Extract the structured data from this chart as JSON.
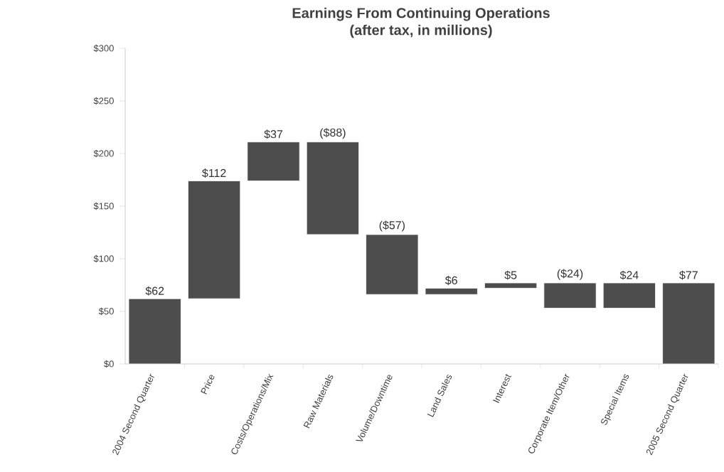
{
  "chart_data": {
    "type": "bar",
    "title": "Earnings From Continuing Operations",
    "subtitle": "(after tax, in millions)",
    "categories": [
      "2004 Second Quarter",
      "Price",
      "Costs/Operations/Mix",
      "Raw Materials",
      "Volume/Downtime",
      "Land Sales",
      "Interest",
      "Corporate Item/Other",
      "Special Items",
      "2005 Second Quarter"
    ],
    "values": [
      62,
      112,
      37,
      -88,
      -57,
      6,
      5,
      -24,
      24,
      77
    ],
    "base": [
      0,
      62,
      174,
      211,
      123,
      66,
      72,
      77,
      53,
      0
    ],
    "value_labels": [
      "$62",
      "$112",
      "$37",
      "($88)",
      "($57)",
      "$6",
      "$5",
      "($24)",
      "$24",
      "$77"
    ],
    "color": "#4d4d4d",
    "ylim": [
      0,
      300
    ],
    "yticks": [
      {
        "value": 0,
        "label": "$0"
      },
      {
        "value": 50,
        "label": "$50"
      },
      {
        "value": 100,
        "label": "$100"
      },
      {
        "value": 150,
        "label": "$150"
      },
      {
        "value": 200,
        "label": "$200"
      },
      {
        "value": 250,
        "label": "$250"
      },
      {
        "value": 300,
        "label": "$300"
      }
    ],
    "grid": false
  }
}
